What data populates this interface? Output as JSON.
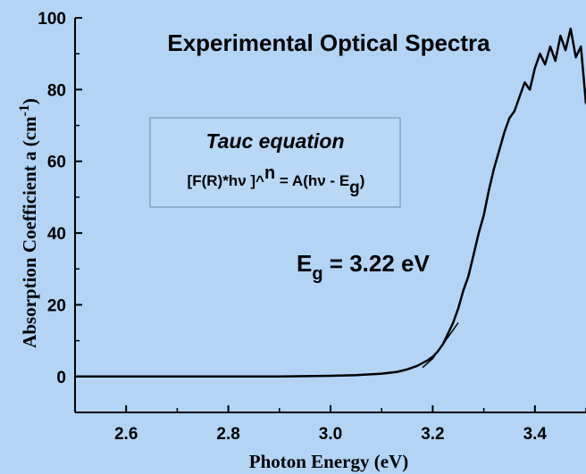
{
  "chart_data": {
    "type": "line",
    "title": "Experimental Optical Spectra",
    "xlabel": "Photon Energy (eV)",
    "ylabel": "Absorption Coefficient a (cm-1)",
    "ylabel_parts": {
      "main": "Absorption Coefficient a (cm",
      "sup": "-1",
      "close": ")"
    },
    "xlim": [
      2.5,
      3.5
    ],
    "ylim": [
      -10,
      100
    ],
    "xticks": [
      2.6,
      2.8,
      3.0,
      3.2,
      3.4
    ],
    "yticks": [
      0,
      20,
      40,
      60,
      80,
      100
    ],
    "grid": false,
    "series": [
      {
        "color": "#000000",
        "x": [
          2.5,
          2.6,
          2.7,
          2.8,
          2.9,
          3.0,
          3.05,
          3.1,
          3.13,
          3.15,
          3.17,
          3.19,
          3.2,
          3.21,
          3.22,
          3.23,
          3.24,
          3.25,
          3.26,
          3.27,
          3.28,
          3.29,
          3.3,
          3.31,
          3.32,
          3.33,
          3.34,
          3.35,
          3.36,
          3.37,
          3.38,
          3.39,
          3.4,
          3.41,
          3.42,
          3.43,
          3.44,
          3.45,
          3.46,
          3.47,
          3.48,
          3.49,
          3.5
        ],
        "y": [
          0,
          0,
          0,
          0,
          0,
          0.2,
          0.4,
          0.8,
          1.3,
          2.0,
          3.0,
          4.5,
          5.5,
          7.0,
          9.0,
          12.0,
          15.0,
          19.0,
          24.0,
          28.0,
          34.0,
          40.0,
          45.0,
          52.0,
          58.0,
          63.0,
          68.0,
          72.0,
          74.0,
          78.0,
          82.0,
          80.0,
          86.0,
          90.0,
          87.0,
          92.0,
          88.0,
          95.0,
          91.0,
          97.0,
          89.0,
          92.0,
          76.0
        ]
      },
      {
        "color": "#000000",
        "x": [
          3.18,
          3.2,
          3.22,
          3.24,
          3.25
        ],
        "y": [
          2.5,
          5.0,
          9.0,
          13.0,
          15.0
        ]
      }
    ]
  },
  "annotation": {
    "title": "Tauc equation",
    "formula_lhs": "[F(R)*hν ]^",
    "formula_exp": "n",
    "formula_rhs": " = A(hν - E",
    "formula_sub": "g",
    "formula_close": ")"
  },
  "band_gap": {
    "main": "E",
    "sub": "g",
    "value": " = 3.22 eV"
  }
}
